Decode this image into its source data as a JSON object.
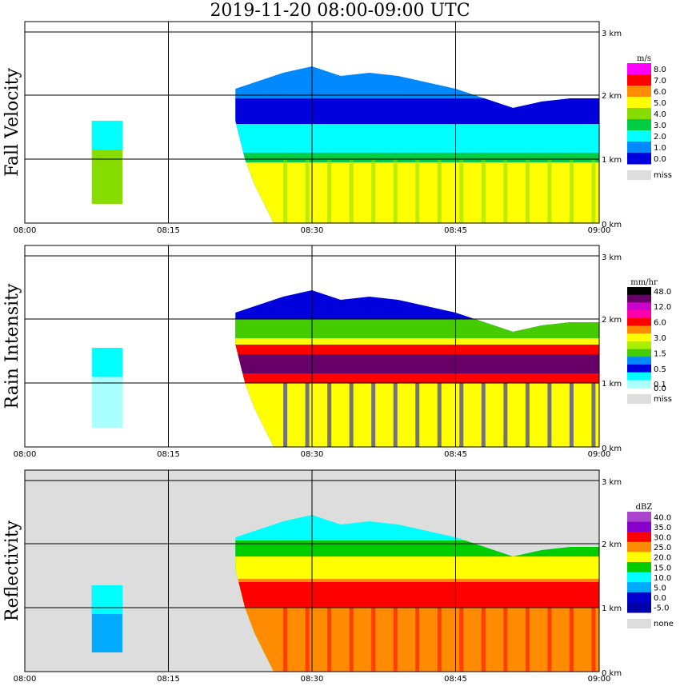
{
  "title": "2019-11-20   08:00-09:00 UTC",
  "chart_data": [
    {
      "type": "heatmap",
      "ylabel": "Fall Velocity",
      "x_ticks": [
        "08:00",
        "08:15",
        "08:30",
        "08:45",
        "09:00"
      ],
      "y_ticks": [
        "0 km",
        "1 km",
        "2 km",
        "3 km"
      ],
      "legend": {
        "unit": "m/s",
        "entries": [
          {
            "label": "8.0",
            "color": "#ff00ff"
          },
          {
            "label": "7.0",
            "color": "#ff0000"
          },
          {
            "label": "6.0",
            "color": "#ff8c00"
          },
          {
            "label": "5.0",
            "color": "#ffff00"
          },
          {
            "label": "4.0",
            "color": "#88dd00"
          },
          {
            "label": "3.0",
            "color": "#00cc44"
          },
          {
            "label": "2.0",
            "color": "#00ffff"
          },
          {
            "label": "1.0",
            "color": "#0088ff"
          },
          {
            "label": "0.0",
            "color": "#0000dd"
          }
        ],
        "miss_label": "miss",
        "miss_color": "#dddddd"
      },
      "background": "#ffffff"
    },
    {
      "type": "heatmap",
      "ylabel": "Rain Intensity",
      "x_ticks": [
        "08:00",
        "08:15",
        "08:30",
        "08:45",
        "09:00"
      ],
      "y_ticks": [
        "0 km",
        "1 km",
        "2 km",
        "3 km"
      ],
      "legend": {
        "unit": "mm/hr",
        "entries": [
          {
            "label": "48.0",
            "color": "#000000"
          },
          {
            "label": "",
            "color": "#660066"
          },
          {
            "label": "12.0",
            "color": "#cc00cc"
          },
          {
            "label": "",
            "color": "#ff00aa"
          },
          {
            "label": "6.0",
            "color": "#ff0000"
          },
          {
            "label": "",
            "color": "#ff8c00"
          },
          {
            "label": "3.0",
            "color": "#ffff00"
          },
          {
            "label": "",
            "color": "#aaee00"
          },
          {
            "label": "1.5",
            "color": "#44cc00"
          },
          {
            "label": "",
            "color": "#0088ff"
          },
          {
            "label": "0.5",
            "color": "#0000dd"
          },
          {
            "label": "",
            "color": "#00ffff"
          },
          {
            "label": "0.1",
            "color": "#aaffff"
          }
        ],
        "zero_label": "0.0",
        "miss_label": "miss",
        "miss_color": "#dddddd"
      },
      "background": "#ffffff"
    },
    {
      "type": "heatmap",
      "ylabel": "Reflectivity",
      "x_ticks": [
        "08:00",
        "08:15",
        "08:30",
        "08:45",
        "09:00"
      ],
      "y_ticks": [
        "0 km",
        "1 km",
        "2 km",
        "3 km"
      ],
      "legend": {
        "unit": "dBZ",
        "entries": [
          {
            "label": "40.0",
            "color": "#aa44cc"
          },
          {
            "label": "35.0",
            "color": "#8800cc"
          },
          {
            "label": "30.0",
            "color": "#ff0000"
          },
          {
            "label": "25.0",
            "color": "#ff8c00"
          },
          {
            "label": "20.0",
            "color": "#ffff00"
          },
          {
            "label": "15.0",
            "color": "#00cc00"
          },
          {
            "label": "10.0",
            "color": "#00ffff"
          },
          {
            "label": "5.0",
            "color": "#00aaff"
          },
          {
            "label": "0.0",
            "color": "#0000cc"
          },
          {
            "label": "-5.0",
            "color": "#0000aa"
          }
        ],
        "miss_label": "none",
        "miss_color": "#dddddd"
      },
      "background": "#dddddd"
    }
  ]
}
